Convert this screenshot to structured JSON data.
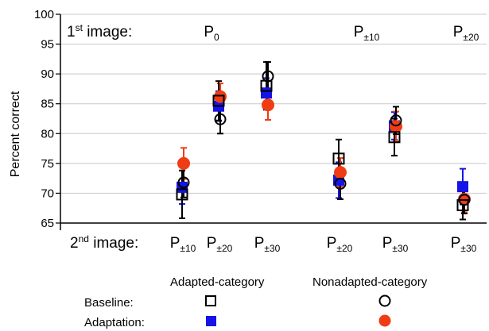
{
  "chart_data": {
    "type": "scatter",
    "ylabel": "Percent correct",
    "ylim": [
      65,
      100
    ],
    "yticks": [
      65,
      70,
      75,
      80,
      85,
      90,
      95,
      100
    ],
    "grid": true,
    "first_image": {
      "label": "1",
      "label_sup": "st",
      "label_rest": " image:",
      "groups": [
        {
          "base": "P",
          "sub": "0"
        },
        {
          "base": "P",
          "sub": "±10"
        },
        {
          "base": "P",
          "sub": "±20"
        }
      ]
    },
    "second_image": {
      "label": "2",
      "label_sup": "nd",
      "label_rest": " image:",
      "conditions": [
        {
          "base": "P",
          "sub": "±10"
        },
        {
          "base": "P",
          "sub": "±20"
        },
        {
          "base": "P",
          "sub": "±30"
        },
        {
          "base": "P",
          "sub": "±20"
        },
        {
          "base": "P",
          "sub": "±30"
        },
        {
          "base": "P",
          "sub": "±30"
        }
      ]
    },
    "series": [
      {
        "key": "adapted_baseline",
        "marker": "open-square",
        "color": "#000000",
        "values": [
          69.8,
          85.5,
          88.0,
          75.8,
          79.4,
          68.0
        ],
        "errors": [
          4.0,
          3.3,
          4.0,
          3.2,
          3.1,
          2.4
        ]
      },
      {
        "key": "nonadapted_baseline",
        "marker": "open-circle",
        "color": "#000000",
        "values": [
          71.8,
          82.4,
          89.6,
          71.6,
          82.2,
          68.9
        ],
        "errors": [
          2.5,
          2.4,
          2.4,
          2.6,
          2.3,
          2.3
        ]
      },
      {
        "key": "adapted_adaptation",
        "marker": "filled-square",
        "color": "#1414e6",
        "values": [
          71.0,
          84.6,
          86.8,
          72.2,
          81.3,
          71.1
        ],
        "errors": [
          2.8,
          2.5,
          2.5,
          3.0,
          2.3,
          3.0
        ]
      },
      {
        "key": "nonadapted_adaptation",
        "marker": "filled-circle",
        "color": "#f03c14",
        "values": [
          75.0,
          86.2,
          84.8,
          73.5,
          81.2,
          69.0
        ],
        "errors": [
          2.6,
          2.2,
          2.5,
          2.4,
          2.5,
          2.2
        ]
      }
    ],
    "legend": {
      "placement": "bottom",
      "col_adapted": "Adapted-category",
      "col_nonadapted": "Nonadapted-category",
      "row_baseline": "Baseline:",
      "row_adaptation": "Adaptation:"
    }
  }
}
